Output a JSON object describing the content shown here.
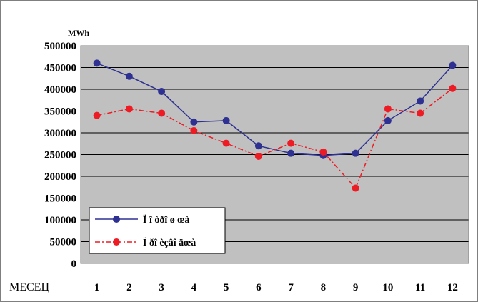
{
  "chart_data": {
    "type": "line",
    "unit_label": "MWh",
    "x_caption": "МЕСЕЦ",
    "categories": [
      "1",
      "2",
      "3",
      "4",
      "5",
      "6",
      "7",
      "8",
      "9",
      "10",
      "11",
      "12"
    ],
    "ylim": [
      0,
      500000
    ],
    "y_ticks": [
      "0",
      "50000",
      "100000",
      "150000",
      "200000",
      "250000",
      "300000",
      "350000",
      "400000",
      "450000",
      "500000"
    ],
    "grid": true,
    "legend_position": "bottom-left",
    "series": [
      {
        "name": "Ï î òðî ø œà",
        "color": "#2e3192",
        "line_style": "solid",
        "values": [
          460000,
          430000,
          395000,
          325000,
          328000,
          270000,
          253000,
          248000,
          253000,
          328000,
          373000,
          455000
        ]
      },
      {
        "name": "Ï ðî èçâî äœà",
        "color": "#ed1c24",
        "line_style": "dashdot",
        "values": [
          340000,
          355000,
          345000,
          305000,
          276000,
          246000,
          276000,
          256000,
          173000,
          355000,
          345000,
          402000
        ]
      }
    ]
  }
}
